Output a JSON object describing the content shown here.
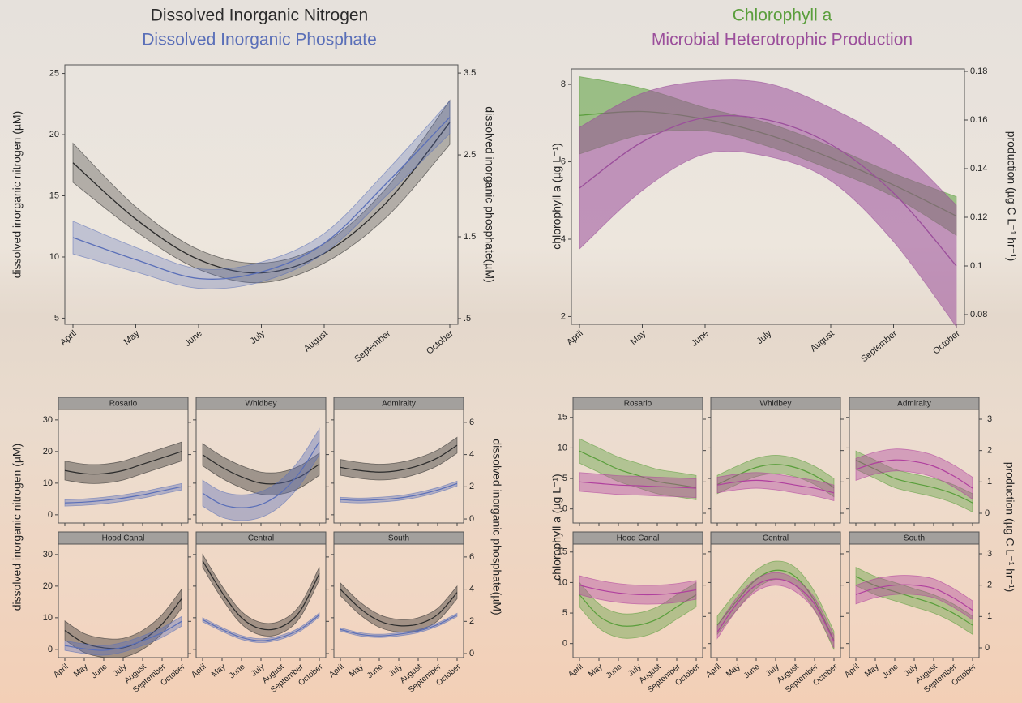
{
  "chart_data": [
    {
      "type": "line",
      "categories": [
        "April",
        "May",
        "June",
        "July",
        "August",
        "September",
        "October"
      ],
      "ylim": [
        4.5,
        25.7
      ],
      "yticks": [
        5,
        10,
        15,
        20,
        25
      ],
      "y2lim": [
        0.43,
        3.6
      ],
      "y2ticks": [
        {
          "value": 0.5,
          "label": ".5"
        },
        1.5,
        2.5,
        3.5
      ],
      "ylabel": "dissolved inorganic nitrogen (µM)",
      "y2label": "dissolved inorganic phosphate(µM)",
      "series": [
        {
          "name": "Dissolved Inorganic Nitrogen",
          "color": "#2b2b2b",
          "values": [
            17.7,
            13.1,
            9.8,
            8.7,
            10.3,
            14.5,
            21
          ],
          "errors": [
            1.6,
            1,
            0.8,
            0.8,
            0.8,
            1.2,
            1.8
          ]
        },
        {
          "name": "Dissolved Inorganic Phosphate",
          "color": "#5a6fb8",
          "axis": "y2",
          "values": [
            1.49,
            1.22,
            0.99,
            1.07,
            1.42,
            2.16,
            2.96
          ],
          "errors": [
            0.2,
            0.15,
            0.12,
            0.12,
            0.12,
            0.15,
            0.2
          ]
        }
      ]
    },
    {
      "type": "line",
      "categories": [
        "April",
        "May",
        "June",
        "July",
        "August",
        "September",
        "October"
      ],
      "ylim": [
        1.8,
        8.4
      ],
      "yticks": [
        2,
        4,
        6,
        8
      ],
      "y2lim": [
        0.076,
        0.181
      ],
      "y2ticks": [
        0.08,
        0.1,
        0.12,
        0.14,
        0.16,
        0.18
      ],
      "ylabel": "chlorophyll a (µg L⁻¹)",
      "y2label": "production (µg C L⁻¹ hr⁻¹)",
      "series": [
        {
          "name": "Chlorophyll a",
          "color": "#5a9e3c",
          "values": [
            7.2,
            7.3,
            7.1,
            6.7,
            6.1,
            5.4,
            4.6
          ],
          "errors": [
            1,
            0.6,
            0.3,
            0.3,
            0.3,
            0.3,
            0.5
          ]
        },
        {
          "name": "Microbial Heterotrophic Production",
          "color": "#9b4f9b",
          "axis": "y2",
          "values": [
            0.132,
            0.151,
            0.161,
            0.16,
            0.15,
            0.13,
            0.1
          ],
          "errors": [
            0.025,
            0.02,
            0.015,
            0.015,
            0.015,
            0.02,
            0.025
          ]
        }
      ]
    },
    {
      "type": "facet-line",
      "categories": [
        "April",
        "May",
        "June",
        "July",
        "August",
        "September",
        "October"
      ],
      "ylim": [
        -2.6,
        33.3
      ],
      "yticks": [
        0,
        10,
        20,
        30
      ],
      "y2lim": [
        -0.25,
        6.8
      ],
      "y2ticks": [
        0,
        2,
        4,
        6
      ],
      "ylabel": "dissolved inorganic nitrogen (µM)",
      "y2label": "dissolved inorganic phosphate(µM)",
      "facets": [
        {
          "title": "Rosario",
          "series": [
            {
              "color": "#2b2b2b",
              "values": [
                14,
                13,
                13,
                14,
                16,
                18,
                20
              ],
              "errors": [
                3,
                3,
                3,
                3,
                3,
                3,
                3
              ]
            },
            {
              "color": "#5a6fb8",
              "axis": "y2",
              "values": [
                1,
                1.05,
                1.15,
                1.3,
                1.5,
                1.75,
                2
              ],
              "errors": [
                0.2,
                0.2,
                0.2,
                0.2,
                0.2,
                0.2,
                0.2
              ]
            }
          ]
        },
        {
          "title": "Whidbey",
          "series": [
            {
              "color": "#2b2b2b",
              "values": [
                19,
                15,
                12,
                10,
                10,
                12,
                16
              ],
              "errors": [
                3.5,
                3.5,
                3.5,
                3.5,
                3.5,
                3.5,
                3.5
              ]
            },
            {
              "color": "#5a6fb8",
              "axis": "y2",
              "values": [
                1.6,
                0.9,
                0.7,
                0.9,
                1.6,
                2.9,
                4.8
              ],
              "errors": [
                0.8,
                0.8,
                0.8,
                0.8,
                0.8,
                0.8,
                0.8
              ]
            }
          ]
        },
        {
          "title": "Admiralty",
          "series": [
            {
              "color": "#2b2b2b",
              "values": [
                15,
                14,
                13.5,
                14,
                15.5,
                18,
                22
              ],
              "errors": [
                2.5,
                2.5,
                2.5,
                2.5,
                2.5,
                2.5,
                2.5
              ]
            },
            {
              "color": "#5a6fb8",
              "axis": "y2",
              "values": [
                1.2,
                1.15,
                1.2,
                1.3,
                1.5,
                1.8,
                2.2
              ],
              "errors": [
                0.15,
                0.15,
                0.15,
                0.15,
                0.15,
                0.15,
                0.15
              ]
            }
          ]
        },
        {
          "title": "Hood Canal",
          "series": [
            {
              "color": "#2b2b2b",
              "values": [
                6,
                2,
                0.5,
                0.5,
                3,
                8,
                16
              ],
              "errors": [
                3,
                3,
                3,
                3,
                3,
                3,
                3
              ]
            },
            {
              "color": "#5a6fb8",
              "axis": "y2",
              "values": [
                0.5,
                0.3,
                0.2,
                0.4,
                0.8,
                1.3,
                2
              ],
              "errors": [
                0.3,
                0.3,
                0.3,
                0.3,
                0.3,
                0.3,
                0.3
              ]
            }
          ]
        },
        {
          "title": "Central",
          "series": [
            {
              "color": "#2b2b2b",
              "values": [
                28,
                18,
                10,
                6.5,
                7,
                12,
                24
              ],
              "errors": [
                2,
                2,
                2,
                2,
                2,
                2,
                2
              ]
            },
            {
              "color": "#5a6fb8",
              "axis": "y2",
              "values": [
                2.1,
                1.5,
                1,
                0.8,
                1,
                1.5,
                2.4
              ],
              "errors": [
                0.12,
                0.12,
                0.12,
                0.12,
                0.12,
                0.12,
                0.12
              ]
            }
          ]
        },
        {
          "title": "South",
          "series": [
            {
              "color": "#2b2b2b",
              "values": [
                19,
                13,
                9,
                7.5,
                8,
                11,
                18
              ],
              "errors": [
                2,
                2,
                2,
                2,
                2,
                2,
                2
              ]
            },
            {
              "color": "#5a6fb8",
              "axis": "y2",
              "values": [
                1.5,
                1.2,
                1.1,
                1.2,
                1.4,
                1.8,
                2.4
              ],
              "errors": [
                0.1,
                0.1,
                0.1,
                0.1,
                0.1,
                0.1,
                0.1
              ]
            }
          ]
        }
      ]
    },
    {
      "type": "facet-line",
      "categories": [
        "April",
        "May",
        "June",
        "July",
        "August",
        "September",
        "October"
      ],
      "ylim": [
        -2.3,
        16.3
      ],
      "yticks": [
        0,
        5,
        10,
        15
      ],
      "y2lim": [
        -0.031,
        0.331
      ],
      "y2ticks": [
        0,
        {
          "value": 0.1,
          "label": ".1"
        },
        {
          "value": 0.2,
          "label": ".2"
        },
        {
          "value": 0.3,
          "label": ".3"
        }
      ],
      "ylabel": "chlorophyll a (µg L⁻¹)",
      "y2label": "production (µg C L⁻¹ hr⁻¹)",
      "facets": [
        {
          "title": "Rosario",
          "series": [
            {
              "color": "#5a9e3c",
              "values": [
                9.5,
                8,
                6.5,
                5.5,
                4.5,
                4,
                3.5
              ],
              "errors": [
                2,
                2,
                2,
                2,
                2,
                2,
                2
              ]
            },
            {
              "color": "#b0409e",
              "axis": "y2",
              "values": [
                0.1,
                0.095,
                0.09,
                0.088,
                0.085,
                0.083,
                0.08
              ],
              "errors": [
                0.03,
                0.03,
                0.03,
                0.03,
                0.03,
                0.03,
                0.03
              ]
            }
          ]
        },
        {
          "title": "Whidbey",
          "series": [
            {
              "color": "#5a9e3c",
              "values": [
                4,
                5.5,
                6.8,
                7.3,
                6.8,
                5.5,
                3.5
              ],
              "errors": [
                1.5,
                1.5,
                1.5,
                1.5,
                1.5,
                1.5,
                1.5
              ]
            },
            {
              "color": "#b0409e",
              "axis": "y2",
              "values": [
                0.09,
                0.1,
                0.105,
                0.1,
                0.09,
                0.08,
                0.065
              ],
              "errors": [
                0.025,
                0.025,
                0.025,
                0.025,
                0.025,
                0.025,
                0.025
              ]
            }
          ]
        },
        {
          "title": "Admiralty",
          "series": [
            {
              "color": "#5a9e3c",
              "values": [
                8,
                6.5,
                5,
                4.2,
                3.5,
                2.5,
                1
              ],
              "errors": [
                1.5,
                1.5,
                1.5,
                1.5,
                1.5,
                1.5,
                1.5
              ]
            },
            {
              "color": "#b0409e",
              "axis": "y2",
              "values": [
                0.14,
                0.16,
                0.17,
                0.165,
                0.15,
                0.12,
                0.08
              ],
              "errors": [
                0.035,
                0.035,
                0.035,
                0.035,
                0.035,
                0.035,
                0.035
              ]
            }
          ]
        },
        {
          "title": "Hood Canal",
          "series": [
            {
              "color": "#5a9e3c",
              "values": [
                8,
                4.5,
                3,
                3,
                4,
                6,
                8
              ],
              "errors": [
                2,
                2,
                2,
                2,
                2,
                2,
                2
              ]
            },
            {
              "color": "#b0409e",
              "axis": "y2",
              "values": [
                0.2,
                0.185,
                0.175,
                0.17,
                0.17,
                0.175,
                0.185
              ],
              "errors": [
                0.03,
                0.03,
                0.03,
                0.03,
                0.03,
                0.03,
                0.03
              ]
            }
          ]
        },
        {
          "title": "Central",
          "series": [
            {
              "color": "#5a9e3c",
              "values": [
                3,
                7,
                10.5,
                12,
                11,
                7,
                0.5
              ],
              "errors": [
                1.5,
                1.5,
                1.5,
                1.5,
                1.5,
                1.5,
                1.5
              ]
            },
            {
              "color": "#b0409e",
              "axis": "y2",
              "values": [
                0.05,
                0.14,
                0.2,
                0.22,
                0.2,
                0.14,
                0.02
              ],
              "errors": [
                0.02,
                0.02,
                0.02,
                0.02,
                0.02,
                0.02,
                0.02
              ]
            }
          ]
        },
        {
          "title": "South",
          "series": [
            {
              "color": "#5a9e3c",
              "values": [
                11,
                9.5,
                8.5,
                7.5,
                6.5,
                5,
                3
              ],
              "errors": [
                1.5,
                1.5,
                1.5,
                1.5,
                1.5,
                1.5,
                1.5
              ]
            },
            {
              "color": "#b0409e",
              "axis": "y2",
              "values": [
                0.17,
                0.19,
                0.2,
                0.2,
                0.19,
                0.16,
                0.12
              ],
              "errors": [
                0.03,
                0.03,
                0.03,
                0.03,
                0.03,
                0.03,
                0.03
              ]
            }
          ]
        }
      ]
    }
  ]
}
